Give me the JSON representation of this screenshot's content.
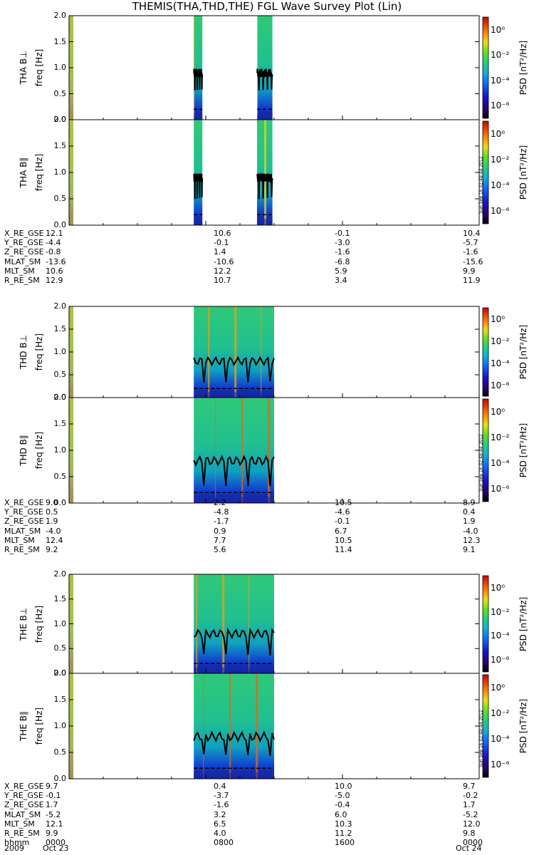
{
  "title": "THEMIS(THA,THD,THE) FGL Wave Survey Plot (Lin)",
  "stamp": "Sun Sep 16 02:48:44 2012",
  "colorbar": {
    "label": "PSD [nT²/Hz]",
    "ticks": [
      "10⁰",
      "10⁻²",
      "10⁻⁴",
      "10⁻⁶"
    ],
    "tick_exponents": [
      "0",
      "-2",
      "-4",
      "-6"
    ]
  },
  "chart_data": {
    "type": "heatmap",
    "xlabel": "",
    "x_range": [
      "2009 Oct 23 0000",
      "2009 Oct 24 0000"
    ],
    "ylim": [
      0,
      2.0
    ],
    "yticks": [
      "0.0",
      "0.5",
      "1.0",
      "1.5",
      "2.0"
    ],
    "ylabel": "freq [Hz]",
    "color_scale": "log",
    "color_range_nT2_per_Hz": [
      1e-07,
      10.0
    ],
    "panels": [
      {
        "label": "THA B⊥",
        "probe": "THA",
        "coverage_hours": [
          [
            0.0,
            0.25
          ],
          [
            7.3,
            7.8
          ],
          [
            11.0,
            11.9
          ]
        ],
        "fce_line_hz": 0.9
      },
      {
        "label": "THA B∥",
        "probe": "THA",
        "coverage_hours": [
          [
            0.0,
            0.25
          ],
          [
            7.3,
            7.8
          ],
          [
            11.0,
            11.9
          ]
        ],
        "fce_line_hz": 0.9
      },
      {
        "label": "THD B⊥",
        "probe": "THD",
        "coverage_hours": [
          [
            0.0,
            0.25
          ],
          [
            7.3,
            12.0
          ]
        ],
        "fce_line_hz": 0.8
      },
      {
        "label": "THD B∥",
        "probe": "THD",
        "coverage_hours": [
          [
            0.0,
            0.25
          ],
          [
            7.3,
            12.0
          ]
        ],
        "fce_line_hz": 0.8
      },
      {
        "label": "THE B⊥",
        "probe": "THE",
        "coverage_hours": [
          [
            0.0,
            0.25
          ],
          [
            7.3,
            12.0
          ]
        ],
        "fce_line_hz": 0.8
      },
      {
        "label": "THE B∥",
        "probe": "THE",
        "coverage_hours": [
          [
            0.0,
            0.25
          ],
          [
            7.3,
            12.0
          ]
        ],
        "fce_line_hz": 0.8
      }
    ]
  },
  "ephemeris": [
    {
      "probe": "THA",
      "rows": [
        {
          "name": "X_RE_GSE",
          "values": [
            "12.1",
            "10.6",
            "-0.1",
            "10.4"
          ]
        },
        {
          "name": "Y_RE_GSE",
          "values": [
            "-4.4",
            "-0.1",
            "-3.0",
            "-5.7"
          ]
        },
        {
          "name": "Z_RE_GSE",
          "values": [
            "-0.8",
            "1.4",
            "-1.6",
            "-1.6"
          ]
        },
        {
          "name": "MLAT_SM",
          "values": [
            "-13.6",
            "-10.6",
            "-6.8",
            "-15.6"
          ]
        },
        {
          "name": "MLT_SM",
          "values": [
            "10.6",
            "12.2",
            "5.9",
            "9.9"
          ]
        },
        {
          "name": "R_RE_SM",
          "values": [
            "12.9",
            "10.7",
            "3.4",
            "11.9"
          ]
        }
      ]
    },
    {
      "probe": "THD",
      "rows": [
        {
          "name": "X_RE_GSE",
          "values": [
            "9.0",
            "2.2",
            "10.5",
            "8.9"
          ]
        },
        {
          "name": "Y_RE_GSE",
          "values": [
            "0.5",
            "-4.8",
            "-4.6",
            "0.4"
          ]
        },
        {
          "name": "Z_RE_GSE",
          "values": [
            "1.9",
            "-1.7",
            "-0.1",
            "1.9"
          ]
        },
        {
          "name": "MLAT_SM",
          "values": [
            "-4.0",
            "0.9",
            "6.7",
            "-4.0"
          ]
        },
        {
          "name": "MLT_SM",
          "values": [
            "12.4",
            "7.7",
            "10.5",
            "12.3"
          ]
        },
        {
          "name": "R_RE_SM",
          "values": [
            "9.2",
            "5.6",
            "11.4",
            "9.1"
          ]
        }
      ]
    },
    {
      "probe": "THE",
      "rows": [
        {
          "name": "X_RE_GSE",
          "values": [
            "9.7",
            "0.4",
            "10.0",
            "9.7"
          ]
        },
        {
          "name": "Y_RE_GSE",
          "values": [
            "-0.1",
            "-3.7",
            "-5.0",
            "-0.2"
          ]
        },
        {
          "name": "Z_RE_GSE",
          "values": [
            "1.7",
            "-1.6",
            "-0.4",
            "1.7"
          ]
        },
        {
          "name": "MLAT_SM",
          "values": [
            "-5.2",
            "3.2",
            "6.0",
            "-5.2"
          ]
        },
        {
          "name": "MLT_SM",
          "values": [
            "12.1",
            "6.5",
            "10.3",
            "12.0"
          ]
        },
        {
          "name": "R_RE_SM",
          "values": [
            "9.9",
            "4.0",
            "11.2",
            "9.8"
          ]
        },
        {
          "name": "hhmm",
          "values": [
            "0000",
            "0800",
            "1600",
            "0000"
          ]
        }
      ]
    }
  ],
  "time_axis": {
    "year": "2009",
    "start_date": "Oct 23",
    "end_date": "Oct 24"
  }
}
